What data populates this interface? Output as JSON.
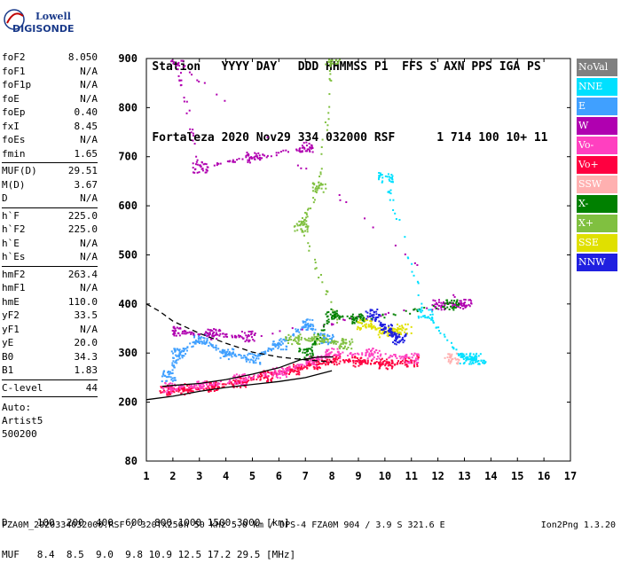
{
  "logo": {
    "line1": "Lowell",
    "line2": "DIGISONDE"
  },
  "header": {
    "row1": [
      "Station",
      "YYYY DAY",
      "DDD",
      "HHMMSS",
      "P1",
      "FFS",
      "S",
      "AXN",
      "PPS",
      "IGA",
      "PS"
    ],
    "row2": [
      "Fortaleza",
      "2020 Nov29",
      "334",
      "032000",
      "RSF",
      "1",
      "714",
      "100",
      "10+",
      "11"
    ]
  },
  "params": {
    "group1": [
      {
        "label": "foF2",
        "value": "8.050"
      },
      {
        "label": "foF1",
        "value": "N/A"
      },
      {
        "label": "foF1p",
        "value": "N/A"
      },
      {
        "label": "foE",
        "value": "N/A"
      },
      {
        "label": "foEp",
        "value": "0.40"
      },
      {
        "label": "fxI",
        "value": "8.45"
      },
      {
        "label": "foEs",
        "value": "N/A"
      },
      {
        "label": "fmin",
        "value": "1.65"
      }
    ],
    "group2": [
      {
        "label": "MUF(D)",
        "value": "29.51"
      },
      {
        "label": "M(D)",
        "value": "3.67"
      },
      {
        "label": "D",
        "value": "N/A"
      }
    ],
    "group3": [
      {
        "label": "h`F",
        "value": "225.0"
      },
      {
        "label": "h`F2",
        "value": "225.0"
      },
      {
        "label": "h`E",
        "value": "N/A"
      },
      {
        "label": "h`Es",
        "value": "N/A"
      }
    ],
    "group4": [
      {
        "label": "hmF2",
        "value": "263.4"
      },
      {
        "label": "hmF1",
        "value": "N/A"
      },
      {
        "label": "hmE",
        "value": "110.0"
      },
      {
        "label": "yF2",
        "value": "33.5"
      },
      {
        "label": "yF1",
        "value": "N/A"
      },
      {
        "label": "yE",
        "value": "20.0"
      },
      {
        "label": "B0",
        "value": "34.3"
      },
      {
        "label": "B1",
        "value": "1.83"
      }
    ],
    "clevel": {
      "label": "C-level",
      "value": "44"
    },
    "auto": [
      "Auto:",
      "Artist5",
      "500200"
    ]
  },
  "legend": [
    {
      "label": "NoVal",
      "color": "#808080"
    },
    {
      "label": "NNE",
      "color": "#00e0ff"
    },
    {
      "label": "E",
      "color": "#40a0ff"
    },
    {
      "label": "W",
      "color": "#b000b0"
    },
    {
      "label": "Vo-",
      "color": "#ff40c0"
    },
    {
      "label": "Vo+",
      "color": "#ff0040"
    },
    {
      "label": "SSW",
      "color": "#ffb0b0"
    },
    {
      "label": "X-",
      "color": "#008000"
    },
    {
      "label": "X+",
      "color": "#80c040"
    },
    {
      "label": "SSE",
      "color": "#e0e000"
    },
    {
      "label": "NNW",
      "color": "#2020e0"
    }
  ],
  "footer": {
    "dist_row": "D     100  200  400  600  800 1000 1500 3000 [km]",
    "muf_row": "MUF   8.4  8.5  9.0  9.8 10.9 12.5 17.2 29.5 [MHz]",
    "file_line": "FZA0M_2020334032000.RSF / 320fx256h 50 kHz 5.0 km / DPS-4 FZA0M 904 / 3.9 S 321.6 E",
    "tool": "Ion2Png 1.3.20"
  },
  "chart_data": {
    "type": "scatter",
    "title": "",
    "xlabel": "",
    "ylabel": "",
    "xlim": [
      1,
      17
    ],
    "ylim": [
      80,
      900
    ],
    "x_ticks": [
      1,
      2,
      3,
      4,
      5,
      6,
      7,
      8,
      9,
      10,
      11,
      12,
      13,
      14,
      15,
      16,
      17
    ],
    "y_ticks": [
      80,
      200,
      300,
      400,
      500,
      600,
      700,
      800,
      900
    ],
    "legend_placement": "right",
    "traces": [
      {
        "name": "Vo+",
        "color": "#ff0040",
        "points": [
          [
            1.7,
            225
          ],
          [
            2.5,
            228
          ],
          [
            3.5,
            233
          ],
          [
            4.5,
            242
          ],
          [
            5.5,
            255
          ],
          [
            6.5,
            268
          ],
          [
            7.3,
            280
          ],
          [
            8.0,
            288
          ],
          [
            9.0,
            285
          ],
          [
            10.0,
            280
          ],
          [
            11.0,
            285
          ]
        ]
      },
      {
        "name": "Vo-",
        "color": "#ff40c0",
        "points": [
          [
            1.8,
            230
          ],
          [
            3,
            235
          ],
          [
            4.5,
            248
          ],
          [
            6,
            262
          ],
          [
            7.2,
            285
          ],
          [
            8,
            300
          ],
          [
            9.5,
            300
          ],
          [
            11,
            290
          ]
        ]
      },
      {
        "name": "E",
        "color": "#40a0ff",
        "points": [
          [
            1.8,
            255
          ],
          [
            2.2,
            300
          ],
          [
            3,
            330
          ],
          [
            4,
            300
          ],
          [
            5,
            290
          ],
          [
            6,
            320
          ],
          [
            7,
            360
          ],
          [
            7.8,
            330
          ]
        ]
      },
      {
        "name": "W",
        "color": "#b000b0",
        "points": [
          [
            2.2,
            345
          ],
          [
            3.5,
            340
          ],
          [
            4.8,
            335
          ],
          [
            12,
            400
          ],
          [
            13,
            400
          ],
          [
            2.1,
            900
          ],
          [
            3,
            680
          ],
          [
            5,
            700
          ],
          [
            7,
            720
          ]
        ]
      },
      {
        "name": "X+",
        "color": "#80c040",
        "points": [
          [
            6.5,
            330
          ],
          [
            7.5,
            330
          ],
          [
            8.5,
            320
          ],
          [
            6.8,
            560
          ],
          [
            7.5,
            640
          ],
          [
            8.0,
            900
          ]
        ]
      },
      {
        "name": "X-",
        "color": "#008000",
        "points": [
          [
            7.0,
            300
          ],
          [
            8,
            380
          ],
          [
            9,
            370
          ],
          [
            12.5,
            400
          ]
        ]
      },
      {
        "name": "SSE",
        "color": "#e0e000",
        "points": [
          [
            9.2,
            360
          ],
          [
            10,
            345
          ],
          [
            10.7,
            350
          ]
        ]
      },
      {
        "name": "NNW",
        "color": "#2020e0",
        "points": [
          [
            9.5,
            380
          ],
          [
            10,
            350
          ],
          [
            10.5,
            330
          ]
        ]
      },
      {
        "name": "NNE",
        "color": "#00e0ff",
        "points": [
          [
            10,
            660
          ],
          [
            11.5,
            380
          ],
          [
            13,
            290
          ],
          [
            13.5,
            290
          ]
        ]
      },
      {
        "name": "SSW",
        "color": "#ffb0b0",
        "points": [
          [
            12.5,
            290
          ]
        ]
      }
    ],
    "curves": [
      {
        "style": "solid",
        "color": "#000000",
        "points": [
          [
            1.6,
            232
          ],
          [
            2,
            234
          ],
          [
            3,
            238
          ],
          [
            4,
            246
          ],
          [
            5,
            257
          ],
          [
            6,
            270
          ],
          [
            6.8,
            286
          ],
          [
            7.5,
            292
          ],
          [
            8.05,
            292
          ]
        ]
      },
      {
        "style": "solid",
        "color": "#000000",
        "points": [
          [
            1.0,
            205
          ],
          [
            2,
            212
          ],
          [
            3,
            222
          ],
          [
            4,
            230
          ],
          [
            5,
            236
          ],
          [
            6,
            242
          ],
          [
            7,
            250
          ],
          [
            8,
            264
          ]
        ]
      },
      {
        "style": "dashed",
        "color": "#000000",
        "points": [
          [
            1.0,
            400
          ],
          [
            1.5,
            385
          ],
          [
            2,
            365
          ],
          [
            3,
            340
          ],
          [
            4,
            320
          ],
          [
            5,
            302
          ],
          [
            6,
            292
          ],
          [
            7,
            286
          ],
          [
            8,
            282
          ]
        ]
      }
    ]
  }
}
